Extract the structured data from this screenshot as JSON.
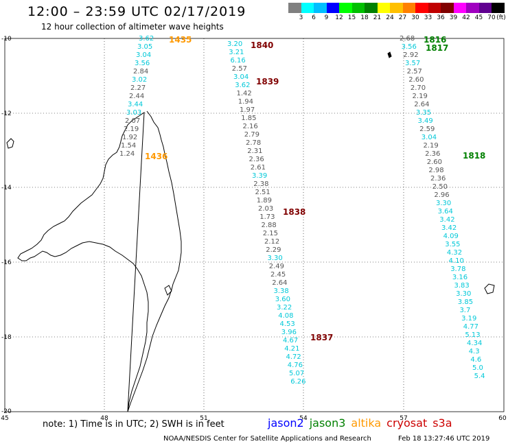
{
  "title": "12:00 – 23:59 UTC 02/17/2019",
  "subtitle": "12 hour collection of altimeter wave heights",
  "scale": {
    "unit": "(ft)",
    "colors": [
      "#808080",
      "#00ffff",
      "#00bfff",
      "#0000ff",
      "#00ff00",
      "#00c000",
      "#008000",
      "#ffff00",
      "#ffc000",
      "#ff8000",
      "#ff0000",
      "#c00000",
      "#800000",
      "#ff00ff",
      "#a000c0",
      "#600090",
      "#000000"
    ],
    "labels": [
      "3",
      "6",
      "9",
      "12",
      "15",
      "18",
      "21",
      "24",
      "27",
      "30",
      "33",
      "36",
      "39",
      "42",
      "45",
      "70"
    ]
  },
  "axes": {
    "lat_labels": [
      "-10",
      "-12",
      "-14",
      "-16",
      "-18",
      "-20"
    ],
    "lon_labels": [
      "45",
      "48",
      "51",
      "54",
      "57",
      "60"
    ]
  },
  "passes": [
    {
      "time": "1435",
      "color": "#ff9900"
    },
    {
      "time": "1436",
      "color": "#ff9900"
    },
    {
      "time": "1840",
      "color": "#800000"
    },
    {
      "time": "1839",
      "color": "#800000"
    },
    {
      "time": "1838",
      "color": "#800000"
    },
    {
      "time": "1837",
      "color": "#800000"
    },
    {
      "time": "1816",
      "color": "#008000"
    },
    {
      "time": "1817",
      "color": "#008000"
    },
    {
      "time": "1818",
      "color": "#008000"
    }
  ],
  "tracks": {
    "altika": {
      "x0": 202,
      "y0": 59,
      "dx": -2.0,
      "dy": 12.0,
      "values": [
        "3.62",
        "3.05",
        "3.04",
        "3.56",
        "2.84",
        "3.02",
        "2.27",
        "2.44",
        "3.44",
        "3.03",
        "2.07",
        "2.19",
        "1.92",
        "1.54",
        "1.24"
      ]
    },
    "west": {
      "x0": 331,
      "y0": 67,
      "dx": 2.25,
      "dy": 12.0,
      "values": [
        "3.20",
        "3.21",
        "6.16",
        "2.57",
        "3.04",
        "3.62",
        "1.42",
        "1.94",
        "1.97",
        "1.85",
        "2.16",
        "2.79",
        "2.78",
        "2.31",
        "2.36",
        "2.61",
        "3.39",
        "2.38",
        "2.51",
        "1.89",
        "2.03",
        "1.73",
        "2.88",
        "2.15",
        "2.12",
        "2.29",
        "3.30",
        "2.49",
        "2.45",
        "2.64",
        "3.38",
        "3.60",
        "3.22",
        "4.08",
        "4.53",
        "3.96",
        "4.67",
        "4.21",
        "4.72",
        "4.76",
        "5.07",
        "6.26"
      ]
    },
    "east": {
      "x0": 582,
      "y0": 59,
      "dx": 2.65,
      "dy": 12.0,
      "values": [
        "2.68",
        "3.56",
        "2.92",
        "3.57",
        "2.57",
        "2.60",
        "2.70",
        "2.19",
        "2.64",
        "3.35",
        "3.49",
        "2.59",
        "3.04",
        "2.19",
        "2.36",
        "2.60",
        "2.98",
        "2.36",
        "2.50",
        "2.96",
        "3.30",
        "3.64",
        "3.42",
        "3.42",
        "4.09",
        "3.55",
        "4.32",
        "4.10",
        "3.78",
        "3.16",
        "3.83",
        "3.30",
        "3.85",
        "3.7",
        "3.19",
        "4.77",
        "5.13",
        "4.34",
        "4.3",
        "4.6",
        "5.0",
        "5.4"
      ]
    }
  },
  "cyan_indices": {
    "altika": [
      0,
      1,
      2,
      3,
      5,
      8,
      9
    ],
    "west": [
      0,
      1,
      2,
      4,
      5,
      16,
      26,
      30,
      31,
      32,
      33,
      34,
      35,
      36,
      37,
      38,
      39,
      40,
      41
    ],
    "east": [
      1,
      3,
      9,
      10,
      12,
      20,
      21,
      22,
      23,
      24,
      25,
      26,
      27,
      28,
      29,
      30,
      31,
      32,
      33,
      34,
      35,
      36,
      37,
      38,
      39,
      40,
      41
    ]
  },
  "note": "note: 1) Time is in UTC; 2) SWH is in feet",
  "legend": [
    {
      "name": "jason2",
      "color": "#0000ff"
    },
    {
      "name": "jason3",
      "color": "#008000"
    },
    {
      "name": "altika",
      "color": "#ff9900"
    },
    {
      "name": "cryosat",
      "color": "#cc0000"
    },
    {
      "name": "s3a",
      "color": "#cc0000"
    }
  ],
  "credit": "NOAA/NESDIS Center for Satellite Applications and Research",
  "credit_time": "Feb 18 13:27:46 UTC 2019"
}
